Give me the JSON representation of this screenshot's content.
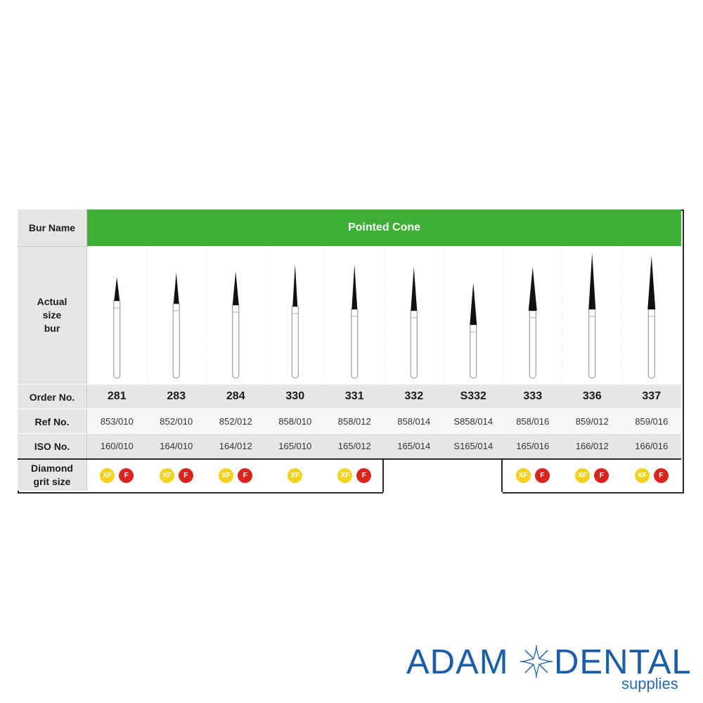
{
  "labels": {
    "bur_name": "Bur Name",
    "actual_size": [
      "Actual",
      "size",
      "bur"
    ],
    "order_no": "Order No.",
    "ref_no": "Ref No.",
    "iso_no": "ISO No.",
    "diamond_grit": [
      "Diamond",
      "grit size"
    ]
  },
  "header": {
    "title": "Pointed Cone"
  },
  "burs": [
    {
      "order": "281",
      "ref": "853/010",
      "iso": "160/010",
      "grit": [
        "XF",
        "F"
      ]
    },
    {
      "order": "283",
      "ref": "852/010",
      "iso": "164/010",
      "grit": [
        "XF",
        "F"
      ]
    },
    {
      "order": "284",
      "ref": "852/012",
      "iso": "164/012",
      "grit": [
        "XF",
        "F"
      ]
    },
    {
      "order": "330",
      "ref": "858/010",
      "iso": "165/010",
      "grit": [
        "XF"
      ]
    },
    {
      "order": "331",
      "ref": "858/012",
      "iso": "165/012",
      "grit": [
        "XF",
        "F"
      ]
    },
    {
      "order": "332",
      "ref": "858/014",
      "iso": "165/014",
      "grit": []
    },
    {
      "order": "S332",
      "ref": "S858/014",
      "iso": "S165/014",
      "grit": []
    },
    {
      "order": "333",
      "ref": "858/016",
      "iso": "165/016",
      "grit": [
        "XF",
        "F"
      ]
    },
    {
      "order": "336",
      "ref": "859/012",
      "iso": "166/012",
      "grit": [
        "XF",
        "F"
      ]
    },
    {
      "order": "337",
      "ref": "859/016",
      "iso": "166/016",
      "grit": [
        "XF",
        "F"
      ]
    }
  ],
  "colors": {
    "header_green": "#3dae36",
    "xf_yellow": "#f2d21b",
    "f_red": "#d9251d",
    "logo_blue": "#1a5ea8"
  },
  "logo": {
    "word_left": "ADAM",
    "word_right": "DENTAL",
    "tagline": "supplies"
  }
}
